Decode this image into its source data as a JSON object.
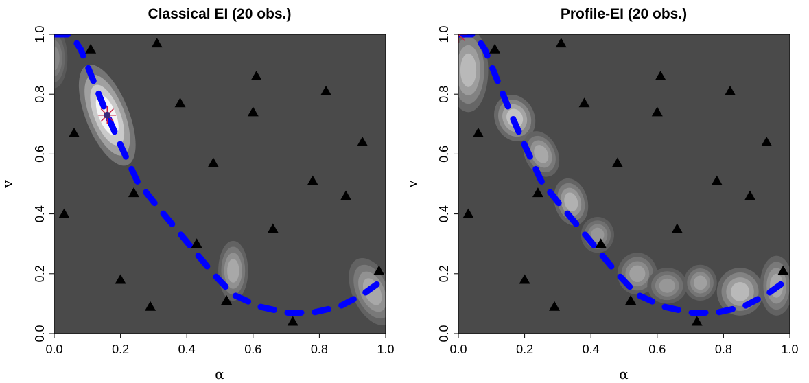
{
  "colors": {
    "background": "#4a4a4a",
    "surface_light": "#f2f2f2",
    "curve": "#0000ff",
    "points": "#000000",
    "best_marker": "#cc2244"
  },
  "chart_data": [
    {
      "type": "heatmap",
      "title": "Classical EI (20 obs.)",
      "xlabel": "α",
      "ylabel": "v",
      "xlim": [
        0,
        1
      ],
      "ylim": [
        0,
        1
      ],
      "xticks": [
        "0.0",
        "0.2",
        "0.4",
        "0.6",
        "0.8",
        "1.0"
      ],
      "yticks": [
        "0.0",
        "0.2",
        "0.4",
        "0.6",
        "0.8",
        "1.0"
      ],
      "grid": false,
      "surface": "expected improvement contours (grey levels, white = high)",
      "best_point": {
        "x": 0.16,
        "y": 0.73
      },
      "points": [
        {
          "x": 0.03,
          "y": 0.4
        },
        {
          "x": 0.06,
          "y": 0.67
        },
        {
          "x": 0.11,
          "y": 0.95
        },
        {
          "x": 0.2,
          "y": 0.18
        },
        {
          "x": 0.24,
          "y": 0.47
        },
        {
          "x": 0.29,
          "y": 0.09
        },
        {
          "x": 0.31,
          "y": 0.97
        },
        {
          "x": 0.38,
          "y": 0.77
        },
        {
          "x": 0.43,
          "y": 0.3
        },
        {
          "x": 0.48,
          "y": 0.57
        },
        {
          "x": 0.52,
          "y": 0.11
        },
        {
          "x": 0.6,
          "y": 0.74
        },
        {
          "x": 0.61,
          "y": 0.86
        },
        {
          "x": 0.66,
          "y": 0.35
        },
        {
          "x": 0.72,
          "y": 0.04
        },
        {
          "x": 0.78,
          "y": 0.51
        },
        {
          "x": 0.82,
          "y": 0.81
        },
        {
          "x": 0.88,
          "y": 0.46
        },
        {
          "x": 0.93,
          "y": 0.64
        },
        {
          "x": 0.98,
          "y": 0.21
        }
      ],
      "curve": [
        {
          "x": 0.0,
          "y": 1.0
        },
        {
          "x": 0.05,
          "y": 1.0
        },
        {
          "x": 0.08,
          "y": 0.95
        },
        {
          "x": 0.12,
          "y": 0.84
        },
        {
          "x": 0.16,
          "y": 0.73
        },
        {
          "x": 0.2,
          "y": 0.63
        },
        {
          "x": 0.25,
          "y": 0.51
        },
        {
          "x": 0.3,
          "y": 0.44
        },
        {
          "x": 0.36,
          "y": 0.36
        },
        {
          "x": 0.42,
          "y": 0.28
        },
        {
          "x": 0.48,
          "y": 0.2
        },
        {
          "x": 0.54,
          "y": 0.13
        },
        {
          "x": 0.62,
          "y": 0.09
        },
        {
          "x": 0.7,
          "y": 0.07
        },
        {
          "x": 0.78,
          "y": 0.07
        },
        {
          "x": 0.86,
          "y": 0.09
        },
        {
          "x": 0.93,
          "y": 0.13
        },
        {
          "x": 0.98,
          "y": 0.17
        }
      ],
      "contour_blobs": [
        {
          "x": 0.16,
          "y": 0.73,
          "rx": 0.065,
          "ry": 0.18,
          "angle": -22,
          "peak": 1.0
        },
        {
          "x": 0.54,
          "y": 0.21,
          "rx": 0.045,
          "ry": 0.1,
          "angle": 0,
          "peak": 0.55
        },
        {
          "x": 0.96,
          "y": 0.14,
          "rx": 0.06,
          "ry": 0.12,
          "angle": -25,
          "peak": 0.55
        },
        {
          "x": 0.0,
          "y": 0.92,
          "rx": 0.04,
          "ry": 0.1,
          "angle": 0,
          "peak": 0.35
        }
      ]
    },
    {
      "type": "heatmap",
      "title": "Profile-EI (20 obs.)",
      "xlabel": "α",
      "ylabel": "v",
      "xlim": [
        0,
        1
      ],
      "ylim": [
        0,
        1
      ],
      "xticks": [
        "0.0",
        "0.2",
        "0.4",
        "0.6",
        "0.8",
        "1.0"
      ],
      "yticks": [
        "0.0",
        "0.2",
        "0.4",
        "0.6",
        "0.8",
        "1.0"
      ],
      "grid": false,
      "surface": "profile expected improvement contours (grey levels, white = high)",
      "best_point": {
        "x": 0.0,
        "y": 1.0
      },
      "points": [
        {
          "x": 0.03,
          "y": 0.4
        },
        {
          "x": 0.06,
          "y": 0.67
        },
        {
          "x": 0.11,
          "y": 0.95
        },
        {
          "x": 0.2,
          "y": 0.18
        },
        {
          "x": 0.24,
          "y": 0.47
        },
        {
          "x": 0.29,
          "y": 0.09
        },
        {
          "x": 0.31,
          "y": 0.97
        },
        {
          "x": 0.38,
          "y": 0.77
        },
        {
          "x": 0.43,
          "y": 0.3
        },
        {
          "x": 0.48,
          "y": 0.57
        },
        {
          "x": 0.52,
          "y": 0.11
        },
        {
          "x": 0.6,
          "y": 0.74
        },
        {
          "x": 0.61,
          "y": 0.86
        },
        {
          "x": 0.66,
          "y": 0.35
        },
        {
          "x": 0.72,
          "y": 0.04
        },
        {
          "x": 0.78,
          "y": 0.51
        },
        {
          "x": 0.82,
          "y": 0.81
        },
        {
          "x": 0.88,
          "y": 0.46
        },
        {
          "x": 0.93,
          "y": 0.64
        },
        {
          "x": 0.98,
          "y": 0.21
        }
      ],
      "curve": [
        {
          "x": 0.0,
          "y": 1.0
        },
        {
          "x": 0.05,
          "y": 1.0
        },
        {
          "x": 0.08,
          "y": 0.95
        },
        {
          "x": 0.12,
          "y": 0.84
        },
        {
          "x": 0.16,
          "y": 0.73
        },
        {
          "x": 0.2,
          "y": 0.63
        },
        {
          "x": 0.25,
          "y": 0.51
        },
        {
          "x": 0.3,
          "y": 0.44
        },
        {
          "x": 0.36,
          "y": 0.36
        },
        {
          "x": 0.42,
          "y": 0.28
        },
        {
          "x": 0.48,
          "y": 0.2
        },
        {
          "x": 0.54,
          "y": 0.13
        },
        {
          "x": 0.62,
          "y": 0.09
        },
        {
          "x": 0.7,
          "y": 0.07
        },
        {
          "x": 0.78,
          "y": 0.07
        },
        {
          "x": 0.86,
          "y": 0.09
        },
        {
          "x": 0.93,
          "y": 0.13
        },
        {
          "x": 0.98,
          "y": 0.17
        }
      ],
      "contour_blobs": [
        {
          "x": 0.03,
          "y": 0.88,
          "rx": 0.06,
          "ry": 0.14,
          "angle": 0,
          "peak": 0.65
        },
        {
          "x": 0.17,
          "y": 0.72,
          "rx": 0.06,
          "ry": 0.08,
          "angle": -25,
          "peak": 0.7
        },
        {
          "x": 0.25,
          "y": 0.6,
          "rx": 0.05,
          "ry": 0.08,
          "angle": -25,
          "peak": 0.55
        },
        {
          "x": 0.34,
          "y": 0.44,
          "rx": 0.05,
          "ry": 0.08,
          "angle": -15,
          "peak": 0.6
        },
        {
          "x": 0.42,
          "y": 0.33,
          "rx": 0.05,
          "ry": 0.06,
          "angle": 0,
          "peak": 0.45
        },
        {
          "x": 0.54,
          "y": 0.2,
          "rx": 0.06,
          "ry": 0.07,
          "angle": 0,
          "peak": 0.5
        },
        {
          "x": 0.63,
          "y": 0.16,
          "rx": 0.06,
          "ry": 0.06,
          "angle": 0,
          "peak": 0.45
        },
        {
          "x": 0.73,
          "y": 0.17,
          "rx": 0.05,
          "ry": 0.06,
          "angle": 0,
          "peak": 0.5
        },
        {
          "x": 0.85,
          "y": 0.14,
          "rx": 0.07,
          "ry": 0.08,
          "angle": 0,
          "peak": 0.65
        },
        {
          "x": 0.96,
          "y": 0.16,
          "rx": 0.05,
          "ry": 0.1,
          "angle": 0,
          "peak": 0.55
        }
      ]
    }
  ]
}
